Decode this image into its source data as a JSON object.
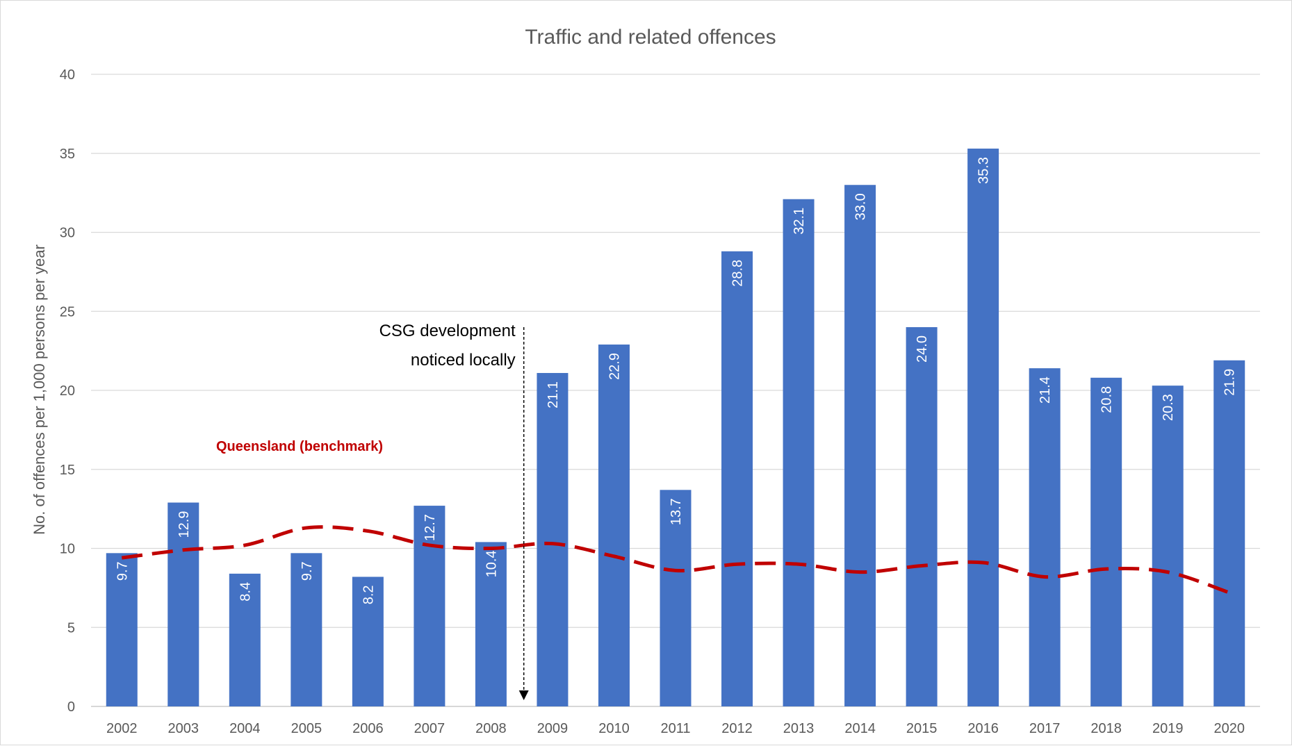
{
  "chart_data": {
    "type": "bar",
    "title": "Traffic and related offences",
    "xlabel": "",
    "ylabel": "No. of offences per 1,000 persons per year",
    "ylim": [
      0,
      40
    ],
    "yticks": [
      0,
      5,
      10,
      15,
      20,
      25,
      30,
      35,
      40
    ],
    "grid": true,
    "categories": [
      "2002",
      "2003",
      "2004",
      "2005",
      "2006",
      "2007",
      "2008",
      "2009",
      "2010",
      "2011",
      "2012",
      "2013",
      "2014",
      "2015",
      "2016",
      "2017",
      "2018",
      "2019",
      "2020"
    ],
    "series": [
      {
        "values": [
          9.7,
          12.9,
          8.4,
          9.7,
          8.2,
          12.7,
          10.4,
          21.1,
          22.9,
          13.7,
          28.8,
          32.1,
          33.0,
          24.0,
          35.3,
          21.4,
          20.8,
          20.3,
          21.9
        ],
        "data_labels": [
          "9.7",
          "12.9",
          "8.4",
          "9.7",
          "8.2",
          "12.7",
          "10.4",
          "21.1",
          "22.9",
          "13.7",
          "28.8",
          "32.1",
          "33.0",
          "24.0",
          "35.3",
          "21.4",
          "20.8",
          "20.3",
          "21.9"
        ],
        "color": "#4472c4"
      },
      {
        "name": "Queensland (benchmark)",
        "style": "dashed-line",
        "values": [
          9.4,
          9.9,
          10.2,
          11.3,
          11.1,
          10.2,
          10.0,
          10.3,
          9.5,
          8.6,
          9.0,
          9.0,
          8.5,
          8.9,
          9.1,
          8.2,
          8.7,
          8.5,
          7.2
        ],
        "color": "#c00000"
      }
    ],
    "annotations": [
      {
        "text_lines": [
          "CSG development",
          "noticed locally"
        ],
        "at_category": "2009",
        "style": "dotted-arrow-down"
      }
    ]
  }
}
